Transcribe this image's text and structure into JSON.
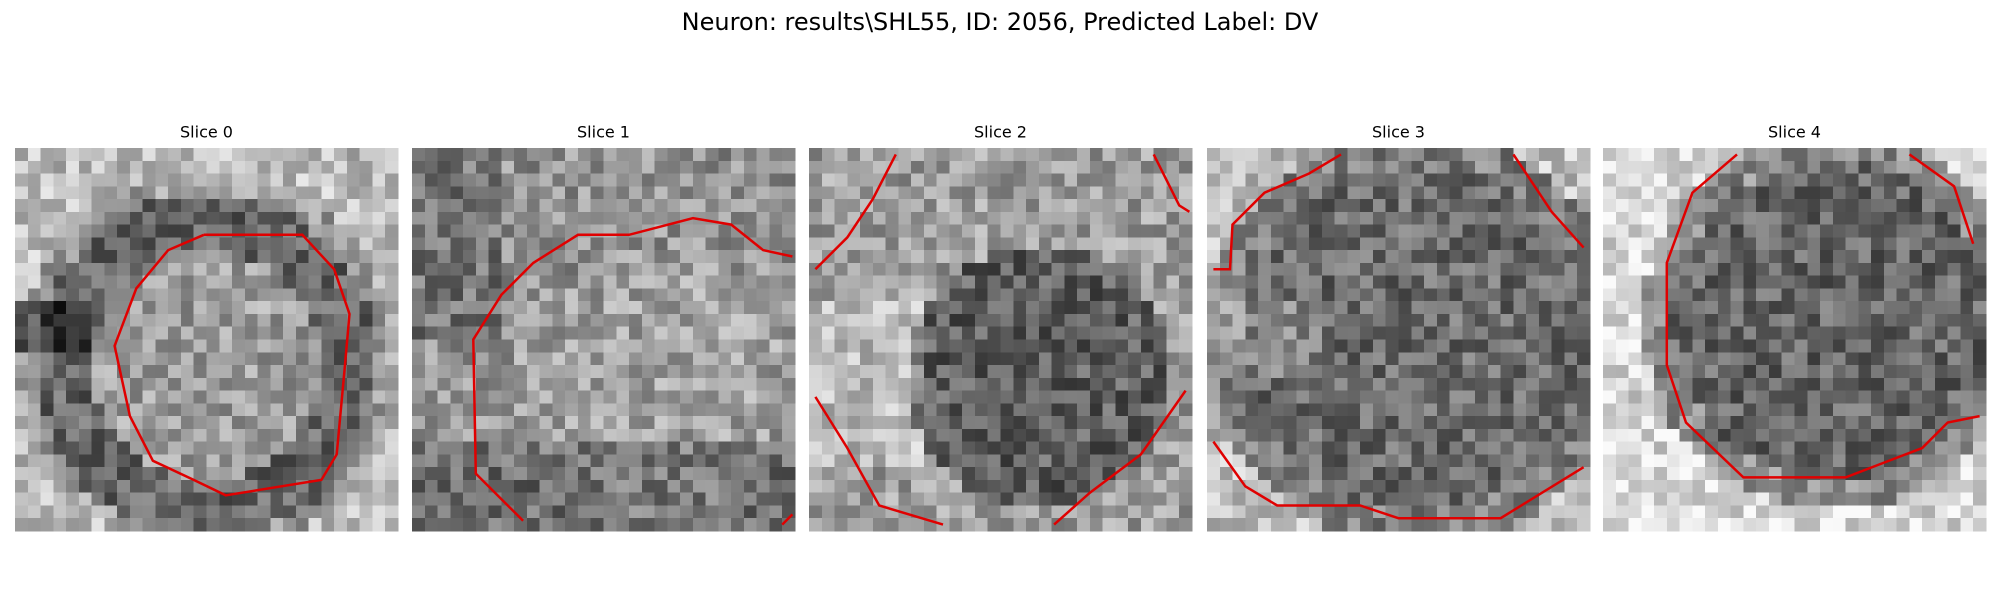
{
  "title": "Neuron: results\\SHL55, ID: 2056, Predicted Label: DV",
  "panels": [
    {
      "title": "Slice 0"
    },
    {
      "title": "Slice 1"
    },
    {
      "title": "Slice 2"
    },
    {
      "title": "Slice 3"
    },
    {
      "title": "Slice 4"
    }
  ]
}
